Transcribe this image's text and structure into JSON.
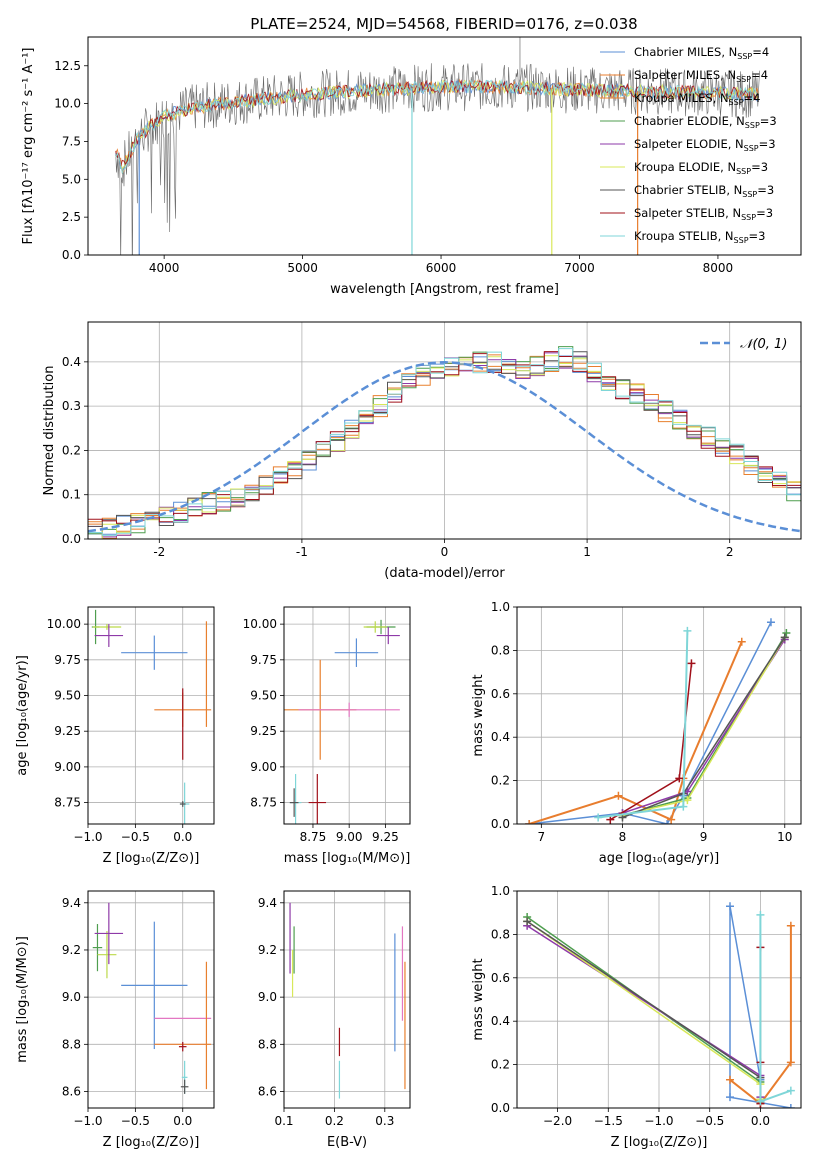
{
  "figure": {
    "title": "PLATE=2524, MJD=54568, FIBERID=0176, z=0.038"
  },
  "colors": {
    "chabrier_miles": "#5b8fd6",
    "salpeter_miles": "#e87d2e",
    "kroupa_miles": "#e8802e",
    "chabrier_elodie": "#4f9e4f",
    "salpeter_elodie": "#8e3aa8",
    "kroupa_elodie": "#d8e85a",
    "chabrier_stelib": "#555555",
    "salpeter_stelib": "#a0101a",
    "kroupa_stelib": "#7fd6d8",
    "pink": "#e377c2",
    "lime": "#bcd94a",
    "grid": "#b0b0b0",
    "normal": "#5b8fd6"
  },
  "chart_data": [
    {
      "id": "spectrum",
      "type": "line",
      "title": "PLATE=2524, MJD=54568, FIBERID=0176, z=0.038",
      "xlabel": "wavelength [Angstrom, rest frame]",
      "ylabel": "Flux [fλ10⁻¹⁷ erg cm⁻² s⁻¹ A⁻¹]",
      "xlim": [
        3450,
        8600
      ],
      "ylim": [
        0,
        14.4
      ],
      "xticks": [
        4000,
        5000,
        6000,
        7000,
        8000
      ],
      "yticks": [
        0.0,
        2.5,
        5.0,
        7.5,
        10.0,
        12.5
      ],
      "ytick_labels": [
        "0.0",
        "2.5",
        "5.0",
        "7.5",
        "10.0",
        "12.5"
      ],
      "legend_position": "upper right",
      "continuum": {
        "x": [
          3650,
          3700,
          3800,
          3900,
          4000,
          4200,
          4500,
          5000,
          5500,
          6000,
          6500,
          7000,
          7500,
          8000,
          8300
        ],
        "y": [
          6.8,
          5.8,
          7.6,
          8.5,
          9.2,
          9.7,
          10.1,
          10.6,
          10.9,
          11.1,
          11.1,
          10.9,
          10.8,
          10.7,
          10.6
        ]
      },
      "spikes": [
        {
          "x": 3820,
          "y": 0.0
        },
        {
          "x": 5790,
          "y": 0.0
        },
        {
          "x": 6800,
          "y": 0.0
        },
        {
          "x": 7420,
          "y": 0.0
        },
        {
          "x": 6570,
          "y": 14.4
        }
      ],
      "legend": [
        {
          "label": "Chabrier MILES, N",
          "sub": "SSP",
          "suffix": "=4",
          "color_key": "chabrier_miles"
        },
        {
          "label": "Salpeter MILES, N",
          "sub": "SSP",
          "suffix": "=4",
          "color_key": "salpeter_miles"
        },
        {
          "label": "Kroupa MILES, N",
          "sub": "SSP",
          "suffix": "=4",
          "color_key": "kroupa_miles"
        },
        {
          "label": "Chabrier ELODIE, N",
          "sub": "SSP",
          "suffix": "=3",
          "color_key": "chabrier_elodie"
        },
        {
          "label": "Salpeter ELODIE, N",
          "sub": "SSP",
          "suffix": "=3",
          "color_key": "salpeter_elodie"
        },
        {
          "label": "Kroupa ELODIE, N",
          "sub": "SSP",
          "suffix": "=3",
          "color_key": "kroupa_elodie"
        },
        {
          "label": "Chabrier STELIB, N",
          "sub": "SSP",
          "suffix": "=3",
          "color_key": "chabrier_stelib"
        },
        {
          "label": "Salpeter STELIB, N",
          "sub": "SSP",
          "suffix": "=3",
          "color_key": "salpeter_stelib"
        },
        {
          "label": "Kroupa STELIB, N",
          "sub": "SSP",
          "suffix": "=3",
          "color_key": "kroupa_stelib"
        }
      ]
    },
    {
      "id": "residuals",
      "type": "line",
      "xlabel": "(data-model)/error",
      "ylabel": "Normed distribution",
      "xlim": [
        -2.5,
        2.5
      ],
      "ylim": [
        0,
        0.49
      ],
      "xticks": [
        -2,
        -1,
        0,
        1,
        2
      ],
      "yticks": [
        0.0,
        0.1,
        0.2,
        0.3,
        0.4
      ],
      "ytick_labels": [
        "0.0",
        "0.1",
        "0.2",
        "0.3",
        "0.4"
      ],
      "legend": [
        {
          "label": "𝒩(0, 1)",
          "style": "dashed",
          "color_key": "normal"
        }
      ],
      "legend_position": "upper right",
      "hist_bin_width": 0.1,
      "hist_xmin": -2.5,
      "hist_base": [
        0.02,
        0.025,
        0.03,
        0.035,
        0.04,
        0.05,
        0.06,
        0.07,
        0.08,
        0.085,
        0.09,
        0.1,
        0.12,
        0.14,
        0.16,
        0.18,
        0.2,
        0.22,
        0.25,
        0.28,
        0.3,
        0.33,
        0.35,
        0.37,
        0.38,
        0.39,
        0.39,
        0.4,
        0.4,
        0.39,
        0.38,
        0.39,
        0.4,
        0.41,
        0.4,
        0.38,
        0.36,
        0.34,
        0.33,
        0.31,
        0.29,
        0.27,
        0.25,
        0.23,
        0.21,
        0.19,
        0.17,
        0.15,
        0.13,
        0.11
      ]
    },
    {
      "id": "age_vs_Z",
      "type": "scatter",
      "xlabel": "Z [log₁₀(Z/Z⊙)]",
      "ylabel": "age  [log₁₀(age/yr)]",
      "xlim": [
        -1.0,
        0.33
      ],
      "ylim": [
        8.6,
        10.12
      ],
      "xticks": [
        -1.0,
        -0.5,
        0.0
      ],
      "xtick_labels": [
        "−1.0",
        "−0.5",
        "0.0"
      ],
      "yticks": [
        8.75,
        9.0,
        9.25,
        9.5,
        9.75,
        10.0
      ],
      "ytick_labels": [
        "8.75",
        "9.00",
        "9.25",
        "9.50",
        "9.75",
        "10.00"
      ],
      "errorbars": [
        {
          "x": -0.92,
          "y": 9.98,
          "xerr": 0.04,
          "yerr": 0.12,
          "color_key": "chabrier_elodie"
        },
        {
          "x": -0.8,
          "y": 9.98,
          "xerr": 0.15,
          "yerr": 0.02,
          "color_key": "lime"
        },
        {
          "x": -0.78,
          "y": 9.92,
          "xerr": 0.15,
          "yerr": 0.08,
          "color_key": "salpeter_elodie"
        },
        {
          "x": -0.3,
          "y": 9.8,
          "xerr": 0.35,
          "yerr": 0.12,
          "color_key": "chabrier_miles"
        },
        {
          "x": 0.0,
          "y": 9.4,
          "xerr": 0.3,
          "yerr": 0.12,
          "color_key": "salpeter_miles"
        },
        {
          "x": 0.25,
          "y": 9.65,
          "xerr": 0.0,
          "yerr": 0.37,
          "color_key": "kroupa_miles"
        },
        {
          "x": 0.0,
          "y": 9.3,
          "xerr": 0.0,
          "yerr": 0.25,
          "color_key": "salpeter_stelib"
        },
        {
          "x": 0.02,
          "y": 8.74,
          "xerr": 0.05,
          "yerr": 0.15,
          "color_key": "kroupa_stelib"
        },
        {
          "x": 0.0,
          "y": 8.74,
          "xerr": 0.03,
          "yerr": 0.02,
          "color_key": "chabrier_stelib"
        }
      ]
    },
    {
      "id": "age_vs_mass",
      "type": "scatter",
      "xlabel": "mass [log₁₀(M/M⊙)]",
      "xlim": [
        8.55,
        9.42
      ],
      "ylim": [
        8.6,
        10.12
      ],
      "xticks": [
        8.75,
        9.0,
        9.25
      ],
      "xtick_labels": [
        "8.75",
        "9.00",
        "9.25"
      ],
      "yticks": [
        8.75,
        9.0,
        9.25,
        9.5,
        9.75,
        10.0
      ],
      "ytick_labels": [
        "8.75",
        "9.00",
        "9.25",
        "9.50",
        "9.75",
        "10.00"
      ],
      "errorbars": [
        {
          "x": 9.22,
          "y": 9.98,
          "xerr": 0.1,
          "yerr": 0.05,
          "color_key": "chabrier_elodie"
        },
        {
          "x": 9.18,
          "y": 9.98,
          "xerr": 0.08,
          "yerr": 0.04,
          "color_key": "lime"
        },
        {
          "x": 9.27,
          "y": 9.92,
          "xerr": 0.08,
          "yerr": 0.06,
          "color_key": "salpeter_elodie"
        },
        {
          "x": 9.05,
          "y": 9.8,
          "xerr": 0.15,
          "yerr": 0.1,
          "color_key": "chabrier_miles"
        },
        {
          "x": 8.8,
          "y": 9.4,
          "xerr": 0.25,
          "yerr": 0.35,
          "color_key": "kroupa_miles"
        },
        {
          "x": 9.0,
          "y": 9.4,
          "xerr": 0.35,
          "yerr": 0.05,
          "color_key": "pink"
        },
        {
          "x": 8.78,
          "y": 8.75,
          "xerr": 0.06,
          "yerr": 0.2,
          "color_key": "salpeter_stelib"
        },
        {
          "x": 8.63,
          "y": 8.75,
          "xerr": 0.04,
          "yerr": 0.2,
          "color_key": "kroupa_stelib"
        },
        {
          "x": 8.62,
          "y": 8.75,
          "xerr": 0.03,
          "yerr": 0.1,
          "color_key": "chabrier_stelib"
        }
      ]
    },
    {
      "id": "weight_vs_age",
      "type": "line",
      "xlabel": "age  [log₁₀(age/yr)]",
      "ylabel": "mass weight",
      "xlim": [
        6.7,
        10.2
      ],
      "ylim": [
        0,
        1.0
      ],
      "xticks": [
        7,
        8,
        9,
        10
      ],
      "yticks": [
        0.0,
        0.2,
        0.4,
        0.6,
        0.8,
        1.0
      ],
      "ytick_labels": [
        "0.0",
        "0.2",
        "0.4",
        "0.6",
        "0.8",
        "1.0"
      ],
      "series": [
        {
          "color_key": "chabrier_miles",
          "x": [
            6.85,
            8.0,
            8.55,
            8.75,
            9.83
          ],
          "y": [
            0.0,
            0.05,
            0.0,
            0.13,
            0.93
          ]
        },
        {
          "color_key": "salpeter_miles",
          "x": [
            6.85,
            7.95,
            8.6,
            8.75,
            9.47
          ],
          "y": [
            0.0,
            0.13,
            0.02,
            0.21,
            0.84
          ]
        },
        {
          "color_key": "chabrier_elodie",
          "x": [
            8.0,
            8.8,
            10.02
          ],
          "y": [
            0.04,
            0.12,
            0.88
          ]
        },
        {
          "color_key": "salpeter_elodie",
          "x": [
            8.0,
            8.8,
            10.0
          ],
          "y": [
            0.05,
            0.15,
            0.85
          ]
        },
        {
          "color_key": "kroupa_elodie",
          "x": [
            8.0,
            8.8,
            10.0
          ],
          "y": [
            0.04,
            0.11,
            0.86
          ]
        },
        {
          "color_key": "chabrier_stelib",
          "x": [
            8.0,
            8.75,
            10.0
          ],
          "y": [
            0.03,
            0.14,
            0.86
          ]
        },
        {
          "color_key": "salpeter_stelib",
          "x": [
            7.85,
            8.7,
            8.85
          ],
          "y": [
            0.02,
            0.21,
            0.74
          ]
        },
        {
          "color_key": "kroupa_stelib",
          "x": [
            7.7,
            8.75,
            8.8
          ],
          "y": [
            0.03,
            0.08,
            0.89
          ]
        }
      ]
    },
    {
      "id": "mass_vs_Z",
      "type": "scatter",
      "xlabel": "Z [log₁₀(Z/Z⊙)]",
      "ylabel": "mass [log₁₀(M/M⊙)]",
      "xlim": [
        -1.0,
        0.33
      ],
      "ylim": [
        8.53,
        9.45
      ],
      "xticks": [
        -1.0,
        -0.5,
        0.0
      ],
      "xtick_labels": [
        "−1.0",
        "−0.5",
        "0.0"
      ],
      "yticks": [
        8.6,
        8.8,
        9.0,
        9.2,
        9.4
      ],
      "ytick_labels": [
        "8.6",
        "8.8",
        "9.0",
        "9.2",
        "9.4"
      ],
      "errorbars": [
        {
          "x": -0.9,
          "y": 9.21,
          "xerr": 0.05,
          "yerr": 0.1,
          "color_key": "chabrier_elodie"
        },
        {
          "x": -0.8,
          "y": 9.18,
          "xerr": 0.1,
          "yerr": 0.1,
          "color_key": "lime"
        },
        {
          "x": -0.78,
          "y": 9.27,
          "xerr": 0.15,
          "yerr": 0.13,
          "color_key": "salpeter_elodie"
        },
        {
          "x": -0.3,
          "y": 9.05,
          "xerr": 0.35,
          "yerr": 0.27,
          "color_key": "chabrier_miles"
        },
        {
          "x": 0.0,
          "y": 8.91,
          "xerr": 0.3,
          "yerr": 0.0,
          "color_key": "pink"
        },
        {
          "x": 0.0,
          "y": 8.8,
          "xerr": 0.3,
          "yerr": 0.0,
          "color_key": "salpeter_miles"
        },
        {
          "x": 0.25,
          "y": 8.88,
          "xerr": 0.0,
          "yerr": 0.27,
          "color_key": "kroupa_miles"
        },
        {
          "x": 0.0,
          "y": 8.79,
          "xerr": 0.04,
          "yerr": 0.02,
          "color_key": "salpeter_stelib"
        },
        {
          "x": 0.02,
          "y": 8.66,
          "xerr": 0.03,
          "yerr": 0.07,
          "color_key": "kroupa_stelib"
        },
        {
          "x": 0.02,
          "y": 8.62,
          "xerr": 0.04,
          "yerr": 0.03,
          "color_key": "chabrier_stelib"
        }
      ]
    },
    {
      "id": "mass_vs_ebv",
      "type": "scatter",
      "xlabel": "E(B-V)",
      "xlim": [
        0.1,
        0.35
      ],
      "ylim": [
        8.53,
        9.45
      ],
      "xticks": [
        0.1,
        0.2,
        0.3
      ],
      "xtick_labels": [
        "0.1",
        "0.2",
        "0.3"
      ],
      "yticks": [
        8.6,
        8.8,
        9.0,
        9.2,
        9.4
      ],
      "ytick_labels": [
        "8.6",
        "8.8",
        "9.0",
        "9.2",
        "9.4"
      ],
      "errorbars": [
        {
          "x": 0.112,
          "y": 9.25,
          "xerr": 0.0,
          "yerr": 0.15,
          "color_key": "salpeter_elodie"
        },
        {
          "x": 0.117,
          "y": 9.1,
          "xerr": 0.0,
          "yerr": 0.1,
          "color_key": "kroupa_elodie"
        },
        {
          "x": 0.12,
          "y": 9.2,
          "xerr": 0.0,
          "yerr": 0.1,
          "color_key": "chabrier_elodie"
        },
        {
          "x": 0.21,
          "y": 8.81,
          "xerr": 0.0,
          "yerr": 0.06,
          "color_key": "salpeter_stelib"
        },
        {
          "x": 0.21,
          "y": 8.65,
          "xerr": 0.0,
          "yerr": 0.08,
          "color_key": "kroupa_stelib"
        },
        {
          "x": 0.32,
          "y": 9.02,
          "xerr": 0.0,
          "yerr": 0.25,
          "color_key": "chabrier_miles"
        },
        {
          "x": 0.335,
          "y": 9.1,
          "xerr": 0.0,
          "yerr": 0.2,
          "color_key": "pink"
        },
        {
          "x": 0.34,
          "y": 8.88,
          "xerr": 0.0,
          "yerr": 0.27,
          "color_key": "kroupa_miles"
        }
      ]
    },
    {
      "id": "weight_vs_Z",
      "type": "line",
      "xlabel": "Z [log₁₀(Z/Z⊙)]",
      "ylabel": "mass weight",
      "xlim": [
        -2.4,
        0.4
      ],
      "ylim": [
        0,
        1.0
      ],
      "xticks": [
        -2.0,
        -1.5,
        -1.0,
        -0.5,
        0.0
      ],
      "xtick_labels": [
        "−2.0",
        "−1.5",
        "−1.0",
        "−0.5",
        "0.0"
      ],
      "yticks": [
        0.0,
        0.2,
        0.4,
        0.6,
        0.8,
        1.0
      ],
      "ytick_labels": [
        "0.0",
        "0.2",
        "0.4",
        "0.6",
        "0.8",
        "1.0"
      ],
      "series": [
        {
          "color_key": "chabrier_miles",
          "x": [
            0.3,
            -0.3,
            -0.3,
            0.0
          ],
          "y": [
            0.0,
            0.05,
            0.93,
            0.13
          ]
        },
        {
          "color_key": "salpeter_miles",
          "x": [
            -0.3,
            0.0,
            0.3,
            0.3
          ],
          "y": [
            0.13,
            0.02,
            0.21,
            0.84
          ]
        },
        {
          "color_key": "chabrier_elodie",
          "x": [
            -2.3,
            0.0,
            0.0
          ],
          "y": [
            0.88,
            0.12,
            0.04
          ]
        },
        {
          "color_key": "salpeter_elodie",
          "x": [
            -2.3,
            0.0,
            0.0
          ],
          "y": [
            0.84,
            0.15,
            0.05
          ]
        },
        {
          "color_key": "kroupa_elodie",
          "x": [
            -2.3,
            0.0,
            0.0
          ],
          "y": [
            0.86,
            0.11,
            0.04
          ]
        },
        {
          "color_key": "chabrier_stelib",
          "x": [
            -2.3,
            0.0,
            0.0
          ],
          "y": [
            0.86,
            0.14,
            0.03
          ]
        },
        {
          "color_key": "salpeter_stelib",
          "x": [
            0.0,
            0.0,
            0.0
          ],
          "y": [
            0.02,
            0.21,
            0.74
          ]
        },
        {
          "color_key": "kroupa_stelib",
          "x": [
            0.0,
            0.0,
            0.3
          ],
          "y": [
            0.89,
            0.03,
            0.08
          ]
        }
      ]
    }
  ]
}
